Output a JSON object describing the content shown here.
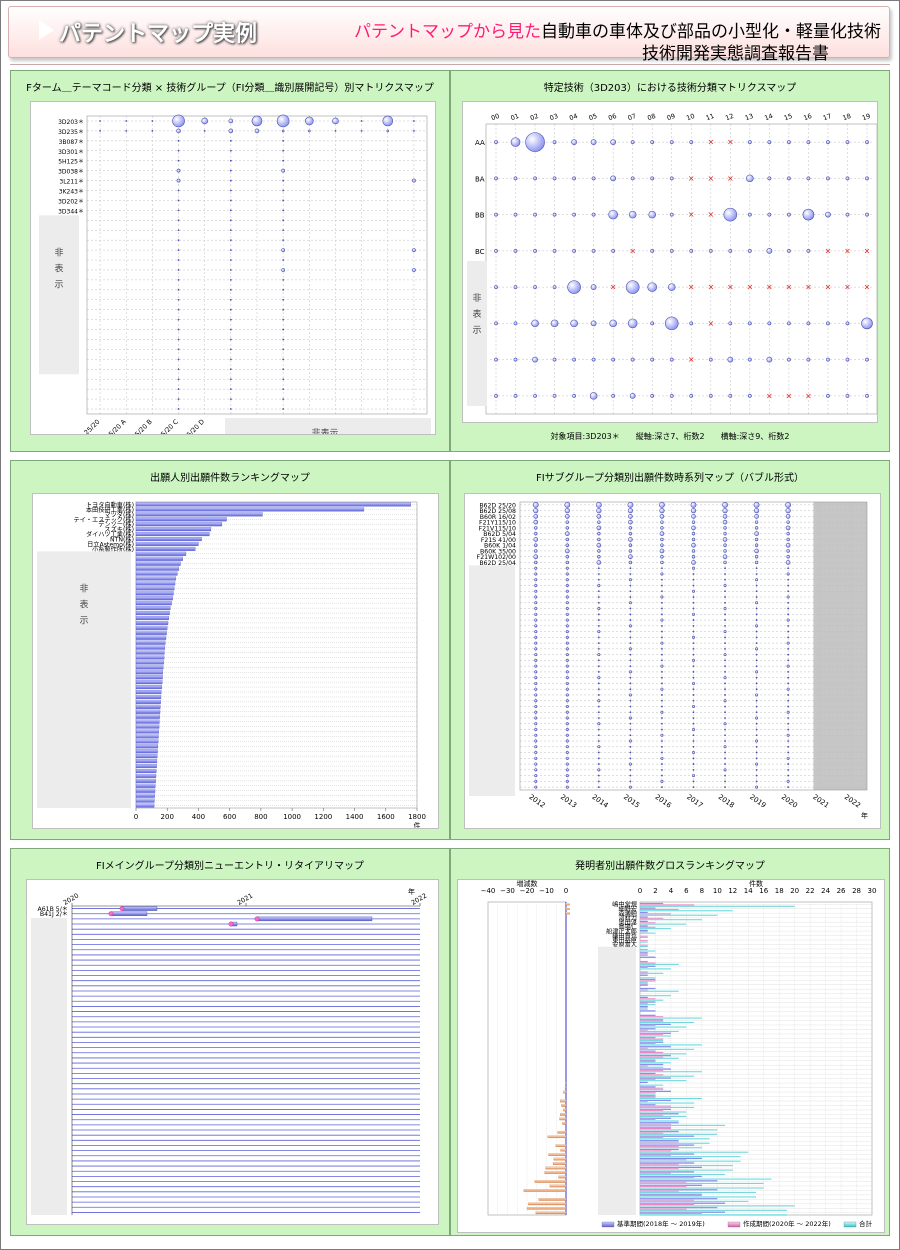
{
  "header": {
    "title": "パテントマップ実例",
    "sub_pink": "パテントマップから見た",
    "sub_black": "自動車の車体及び部品の小型化・軽量化技術",
    "sub_line2": "技術開発実態調査報告書"
  },
  "hidden_label_v": [
    "非",
    "表",
    "示"
  ],
  "hidden_label": "非表示",
  "chart_data": [
    {
      "id": "p1",
      "type": "scatter",
      "title": "Fターム＿テーマコード分類 × 技術グループ（FI分類＿識別展開記号）別マトリクスマップ",
      "y_labels": [
        "3D203＊",
        "3D235＊",
        "3B087＊",
        "3D301＊",
        "5H125＊",
        "3D038＊",
        "3L211＊",
        "3K243＊",
        "3D202＊",
        "3D344＊"
      ],
      "x_labels": [
        "B62D 25/20",
        "B62D 25/20 A",
        "B62D 25/20 B",
        "B62D 25/20 C",
        "B62D 25/20 D"
      ],
      "bubble_sizes_row1": [
        1,
        1,
        1,
        6,
        3,
        2,
        5,
        6,
        4,
        3,
        1,
        5,
        1
      ],
      "bubble_sizes_row2": [
        0,
        0,
        0,
        2,
        0,
        2,
        2,
        1,
        1,
        0,
        0,
        1,
        0
      ]
    },
    {
      "id": "p2",
      "type": "scatter",
      "title": "特定技術（3D203）における技術分類マトリクスマップ",
      "x_labels": [
        "00",
        "01",
        "02",
        "03",
        "04",
        "05",
        "06",
        "07",
        "08",
        "09",
        "10",
        "11",
        "12",
        "13",
        "14",
        "15",
        "16",
        "17",
        "18",
        "19"
      ],
      "y_labels": [
        "AA",
        "BA",
        "BB",
        "BC"
      ],
      "note": "対象項目:3D203＊　　縦軸:深さ7、桁数2　　横軸:深さ9、桁数2"
    },
    {
      "id": "p3",
      "type": "bar",
      "title": "出願人別出願件数ランキングマップ",
      "categories": [
        "トヨタ自動車(株)",
        "本田技研工業(株)",
        "マツダ(株)",
        "テイ・エステック(株)",
        "デンソー(株)",
        "スズキ(株)",
        "ダイハツ工業(株)",
        "NTN(株)",
        "日立Astemo(株)",
        "小糸製作所(株)"
      ],
      "values": [
        1760,
        1460,
        810,
        580,
        550,
        480,
        470,
        420,
        400,
        380
      ],
      "tail_values": [
        320,
        300,
        285,
        275,
        265,
        255,
        250,
        245,
        240,
        235,
        228,
        220,
        215,
        210,
        205,
        200,
        196,
        192,
        188,
        185,
        182,
        180,
        178,
        175,
        172,
        170,
        168,
        165,
        162,
        160,
        158,
        156,
        154,
        152,
        150,
        148,
        146,
        144,
        142,
        140,
        138,
        136,
        134,
        132,
        130,
        128,
        126,
        124,
        122,
        120,
        118,
        116
      ],
      "xlim": [
        0,
        1800
      ],
      "x_ticks": [
        "0",
        "200",
        "400",
        "600",
        "800",
        "1000",
        "1200",
        "1400",
        "1600",
        "1800"
      ],
      "unit": "件"
    },
    {
      "id": "p4",
      "type": "scatter",
      "title": "FIサブグループ分類別出願件数時系列マップ（バブル形式）",
      "y_labels": [
        "B62D 25/20",
        "B62D 25/08",
        "B60R 16/02",
        "F21Y115/10",
        "F21V115/10",
        "B62D 5/04",
        "F21S 41/00",
        "B60K 1/04",
        "B60K 35/00",
        "F21W102/00",
        "B62D 25/04"
      ],
      "x_labels": [
        "2012",
        "2013",
        "2014",
        "2015",
        "2016",
        "2017",
        "2018",
        "2019",
        "2020",
        "2021",
        "2022"
      ],
      "unit": "年"
    },
    {
      "id": "p5",
      "type": "bar",
      "title": "FIメイングループ分類別ニューエントリ・リタイアリマップ",
      "x_labels": [
        "2020",
        "2021",
        "2022"
      ],
      "unit": "年",
      "y_labels": [
        "A61B 5/＊",
        "B41J 2/＊"
      ]
    },
    {
      "id": "p6",
      "type": "bar",
      "title": "発明者別出願件数グロスランキングマップ",
      "left_xlabel": "増減数",
      "left_ticks": [
        "−40",
        "−30",
        "−20",
        "−10",
        "0"
      ],
      "right_xlabel": "件数",
      "right_ticks": [
        "0",
        "2",
        "4",
        "6",
        "8",
        "10",
        "12",
        "14",
        "16",
        "18",
        "20",
        "22",
        "24",
        "26",
        "28",
        "30"
      ],
      "inventors": [
        "嶋中常規",
        "細野宏",
        "森瀬純",
        "河村力",
        "奥田淳",
        "鳥場仁",
        "船津正太郎",
        "鎌田貴也",
        "東田裕臣",
        "安原富人"
      ],
      "legend": [
        "基準期間(2018年 〜 2019年)",
        "作成期間(2020年 〜 2022年)",
        "合計"
      ]
    }
  ]
}
